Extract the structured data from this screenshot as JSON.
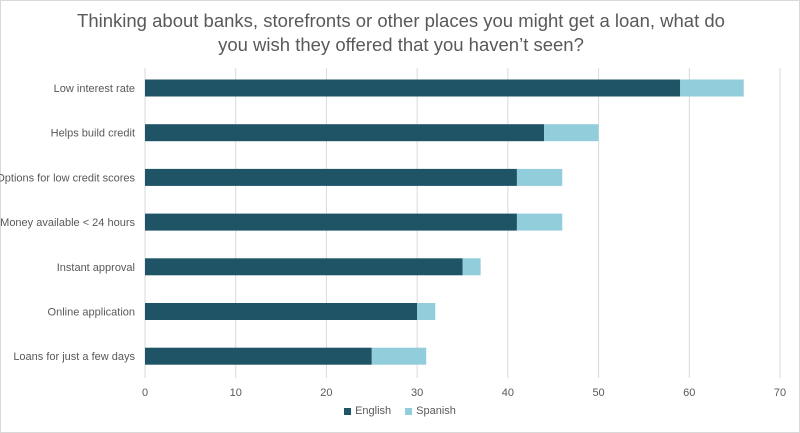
{
  "chart_data": {
    "type": "bar",
    "orientation": "horizontal",
    "stacked": true,
    "title": "Thinking about banks, storefronts or other places you might get a loan, what do you wish they offered that you haven’t seen?",
    "categories": [
      "Low interest rate",
      "Helps build credit",
      "Options for low credit scores",
      "Money available < 24 hours",
      "Instant approval",
      "Online application",
      "Loans for just a few days"
    ],
    "series": [
      {
        "name": "English",
        "color": "#1f5466",
        "values": [
          59,
          44,
          41,
          41,
          35,
          30,
          25
        ]
      },
      {
        "name": "Spanish",
        "color": "#92cddc",
        "values": [
          7,
          6,
          5,
          5,
          2,
          2,
          6
        ]
      }
    ],
    "xlim": [
      0,
      70
    ],
    "xticks": [
      0,
      10,
      20,
      30,
      40,
      50,
      60,
      70
    ],
    "grid": "vertical",
    "legend_position": "bottom"
  }
}
